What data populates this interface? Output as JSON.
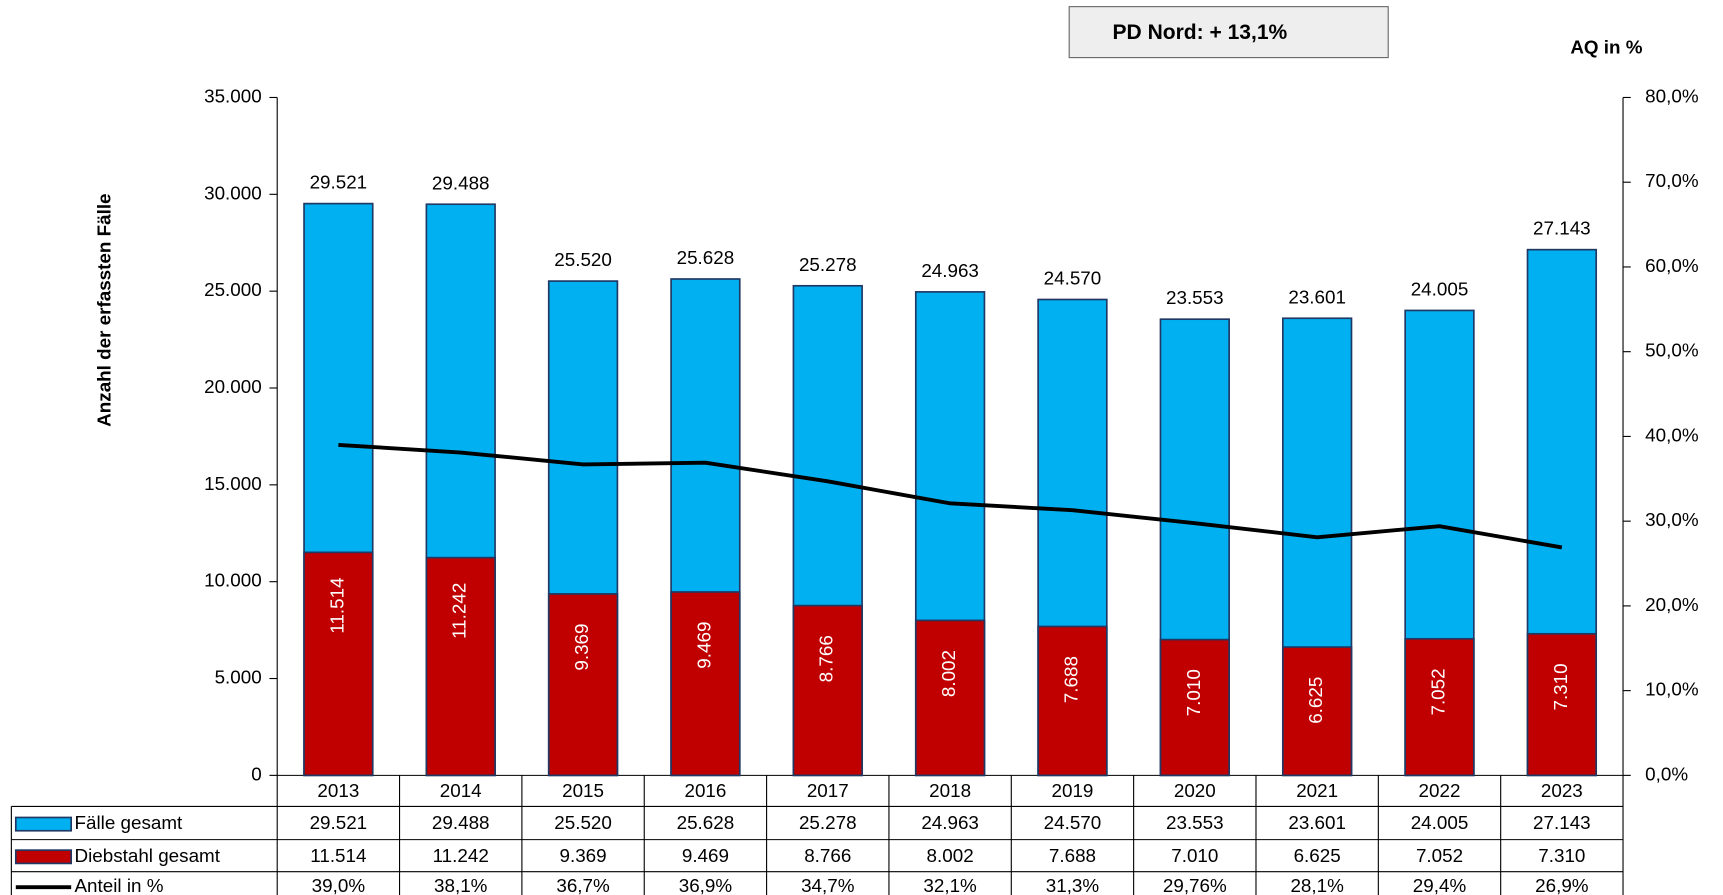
{
  "chart_data": {
    "type": "bar",
    "annotation": "PD Nord: + 13,1%",
    "ylabel": "Anzahl der erfassten Fälle",
    "y2label": "AQ in %",
    "categories": [
      "2013",
      "2014",
      "2015",
      "2016",
      "2017",
      "2018",
      "2019",
      "2020",
      "2021",
      "2022",
      "2023"
    ],
    "series": [
      {
        "name": "Fälle gesamt",
        "color": "#00b0f0",
        "values": [
          29521,
          29488,
          25520,
          25628,
          25278,
          24963,
          24570,
          23553,
          23601,
          24005,
          27143
        ],
        "value_labels": [
          "29.521",
          "29.488",
          "25.520",
          "25.628",
          "25.278",
          "24.963",
          "24.570",
          "23.553",
          "23.601",
          "24.005",
          "27.143"
        ]
      },
      {
        "name": "Diebstahl gesamt",
        "color": "#c00000",
        "values": [
          11514,
          11242,
          9369,
          9469,
          8766,
          8002,
          7688,
          7010,
          6625,
          7052,
          7310
        ],
        "value_labels": [
          "11.514",
          "11.242",
          "9.369",
          "9.469",
          "8.766",
          "8.002",
          "7.688",
          "7.010",
          "6.625",
          "7.052",
          "7.310"
        ]
      },
      {
        "name": "Anteil in %",
        "color": "#000000",
        "axis": "y2",
        "type": "line",
        "values": [
          39.0,
          38.1,
          36.7,
          36.9,
          34.7,
          32.1,
          31.3,
          29.76,
          28.1,
          29.4,
          26.9
        ],
        "value_labels": [
          "39,0%",
          "38,1%",
          "36,7%",
          "36,9%",
          "34,7%",
          "32,1%",
          "31,3%",
          "29,76%",
          "28,1%",
          "29,4%",
          "26,9%"
        ]
      }
    ],
    "ylim": [
      0,
      35000
    ],
    "yticks": [
      0,
      {
        "value": 5000,
        "label": "5.000"
      },
      {
        "value": 10000,
        "label": "10.000"
      },
      {
        "value": 15000,
        "label": "15.000"
      },
      {
        "value": 20000,
        "label": "20.000"
      },
      {
        "value": 25000,
        "label": "25.000"
      },
      {
        "value": 30000,
        "label": "30.000"
      },
      {
        "value": 35000,
        "label": "35.000"
      }
    ],
    "y2lim": [
      0,
      80
    ],
    "y2ticks": [
      {
        "value": 0,
        "label": "0,0%"
      },
      {
        "value": 10,
        "label": "10,0%"
      },
      {
        "value": 20,
        "label": "20,0%"
      },
      {
        "value": 30,
        "label": "30,0%"
      },
      {
        "value": 40,
        "label": "40,0%"
      },
      {
        "value": 50,
        "label": "50,0%"
      },
      {
        "value": 60,
        "label": "60,0%"
      },
      {
        "value": 70,
        "label": "70,0%"
      },
      {
        "value": 80,
        "label": "80,0%"
      }
    ]
  }
}
